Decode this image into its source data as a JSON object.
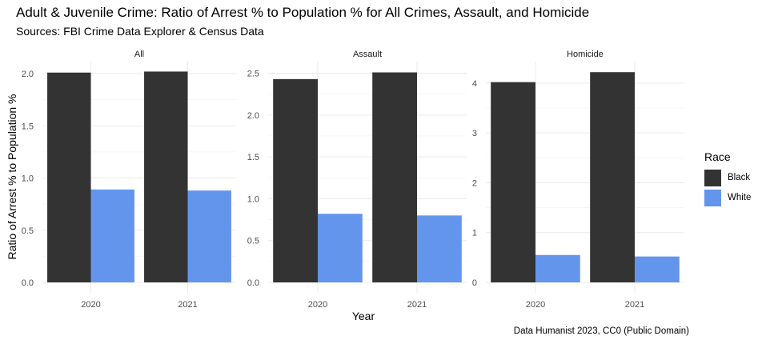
{
  "title": "Adult & Juvenile Crime: Ratio of Arrest % to Population % for All Crimes, Assault, and Homicide",
  "subtitle": "Sources: FBI Crime Data Explorer & Census Data",
  "caption": "Data Humanist 2023, CC0 (Public Domain)",
  "legend": {
    "title": "Race",
    "items": [
      {
        "label": "Black",
        "color": "#333333"
      },
      {
        "label": "White",
        "color": "#6495ED"
      }
    ]
  },
  "chart_data": {
    "type": "bar",
    "xlabel": "Year",
    "ylabel": "Ratio of Arrest % to Population %",
    "grid": true,
    "legend_position": "right",
    "panels": [
      {
        "name": "All",
        "categories": [
          "2020",
          "2021"
        ],
        "ylim": [
          0,
          2.1
        ],
        "yticks": [
          0.0,
          0.5,
          1.0,
          1.5,
          2.0
        ],
        "tick_format": "0.0",
        "series": [
          {
            "name": "Black",
            "values": [
              2.01,
              2.02
            ]
          },
          {
            "name": "White",
            "values": [
              0.89,
              0.88
            ]
          }
        ]
      },
      {
        "name": "Assault",
        "categories": [
          "2020",
          "2021"
        ],
        "ylim": [
          0,
          2.62
        ],
        "yticks": [
          0.0,
          0.5,
          1.0,
          1.5,
          2.0,
          2.5
        ],
        "tick_format": "0.0",
        "series": [
          {
            "name": "Black",
            "values": [
              2.43,
              2.51
            ]
          },
          {
            "name": "White",
            "values": [
              0.82,
              0.8
            ]
          }
        ]
      },
      {
        "name": "Homicide",
        "categories": [
          "2020",
          "2021"
        ],
        "ylim": [
          0,
          4.4
        ],
        "yticks": [
          0,
          1,
          2,
          3,
          4
        ],
        "tick_format": "0",
        "series": [
          {
            "name": "Black",
            "values": [
              4.02,
              4.22
            ]
          },
          {
            "name": "White",
            "values": [
              0.55,
              0.52
            ]
          }
        ]
      }
    ]
  }
}
